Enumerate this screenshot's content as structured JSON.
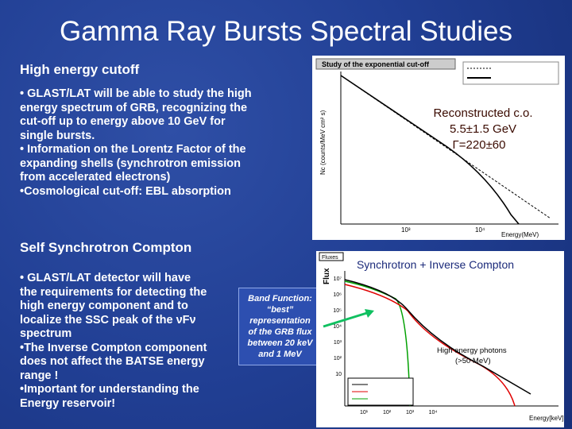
{
  "title": "Gamma Ray Bursts Spectral Studies",
  "sections": [
    {
      "heading": "High energy cutoff",
      "lines": [
        "• GLAST/LAT will be able to study the high",
        "energy spectrum of GRB, recognizing the",
        "cut-off up to energy above 10 GeV for",
        "single bursts.",
        "• Information on the Lorentz Factor of the",
        "expanding shells (synchrotron emission",
        "from accelerated electrons)",
        "•Cosmological cut-off: EBL absorption"
      ]
    },
    {
      "heading": "Self Synchrotron Compton",
      "lines": [
        "• GLAST/LAT detector will have",
        "the requirements for detecting the",
        "high energy component and to",
        "localize the SSC peak of the νFν",
        "spectrum",
        "•The Inverse Compton component",
        "does not affect the BATSE energy",
        "range !",
        "•Important for understanding the",
        "Energy reservoir!"
      ]
    }
  ],
  "figures": [
    {
      "header": "Study of the exponential cut-off",
      "y_label": "Nc (counts/MeV cm² s)",
      "x_label": "Energy(MeV)",
      "x_ticks": [
        "10³",
        "10⁴"
      ],
      "annotation": [
        "Reconstructed c.o.",
        "5.5±1.5 GeV",
        "Γ=220±60"
      ]
    },
    {
      "header": "Fluxes",
      "title": "Synchrotron + Inverse Compton",
      "y_label": "Flux",
      "x_label": "Energy[keV]",
      "x_ticks": [
        "10¹",
        "10²",
        "10³",
        "10⁴"
      ],
      "y_ticks": [
        "10⁷",
        "10⁶",
        "10⁵",
        "10⁴",
        "10³",
        "10²",
        "10"
      ],
      "annotation": [
        "High energy photons",
        "(>50 MeV)"
      ]
    }
  ],
  "callout": [
    "Band Function:",
    "“best”",
    "representation",
    "of the GRB flux",
    "between 20 keV",
    "and 1 MeV"
  ]
}
